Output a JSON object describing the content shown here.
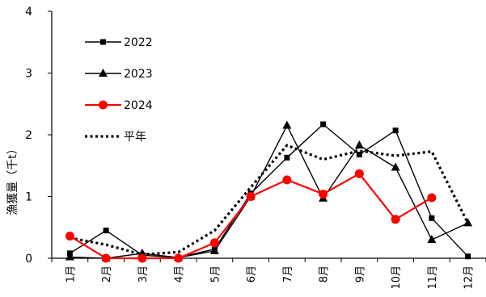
{
  "chart_data": {
    "type": "line",
    "ylabel": "漁獲量（千t）",
    "ylim": [
      0,
      4
    ],
    "yticks": [
      0,
      1,
      2,
      3,
      4
    ],
    "categories": [
      "1月",
      "2月",
      "3月",
      "4月",
      "5月",
      "6月",
      "7月",
      "8月",
      "9月",
      "10月",
      "11月",
      "12月"
    ],
    "grid": false,
    "legend_position": "top-left",
    "series": [
      {
        "name": "2022",
        "color": "#000000",
        "marker": "square",
        "line": "solid",
        "values": [
          0.08,
          0.45,
          0.05,
          0.01,
          0.15,
          1.05,
          1.63,
          2.17,
          1.68,
          2.07,
          0.65,
          0.03
        ]
      },
      {
        "name": "2023",
        "color": "#000000",
        "marker": "triangle",
        "line": "solid",
        "values": [
          0.02,
          0.0,
          0.08,
          0.01,
          0.12,
          1.0,
          2.15,
          0.97,
          1.83,
          1.47,
          0.3,
          0.57
        ]
      },
      {
        "name": "2024",
        "color": "#ff0000",
        "marker": "circle",
        "line": "solid",
        "values": [
          0.36,
          0.0,
          0.0,
          0.0,
          0.25,
          1.0,
          1.27,
          1.04,
          1.37,
          0.63,
          0.98,
          null
        ]
      },
      {
        "name": "平年",
        "color": "#000000",
        "marker": "none",
        "line": "dotted",
        "values": [
          0.33,
          0.22,
          0.06,
          0.1,
          0.45,
          1.15,
          1.83,
          1.6,
          1.74,
          1.66,
          1.73,
          0.57
        ]
      }
    ]
  }
}
